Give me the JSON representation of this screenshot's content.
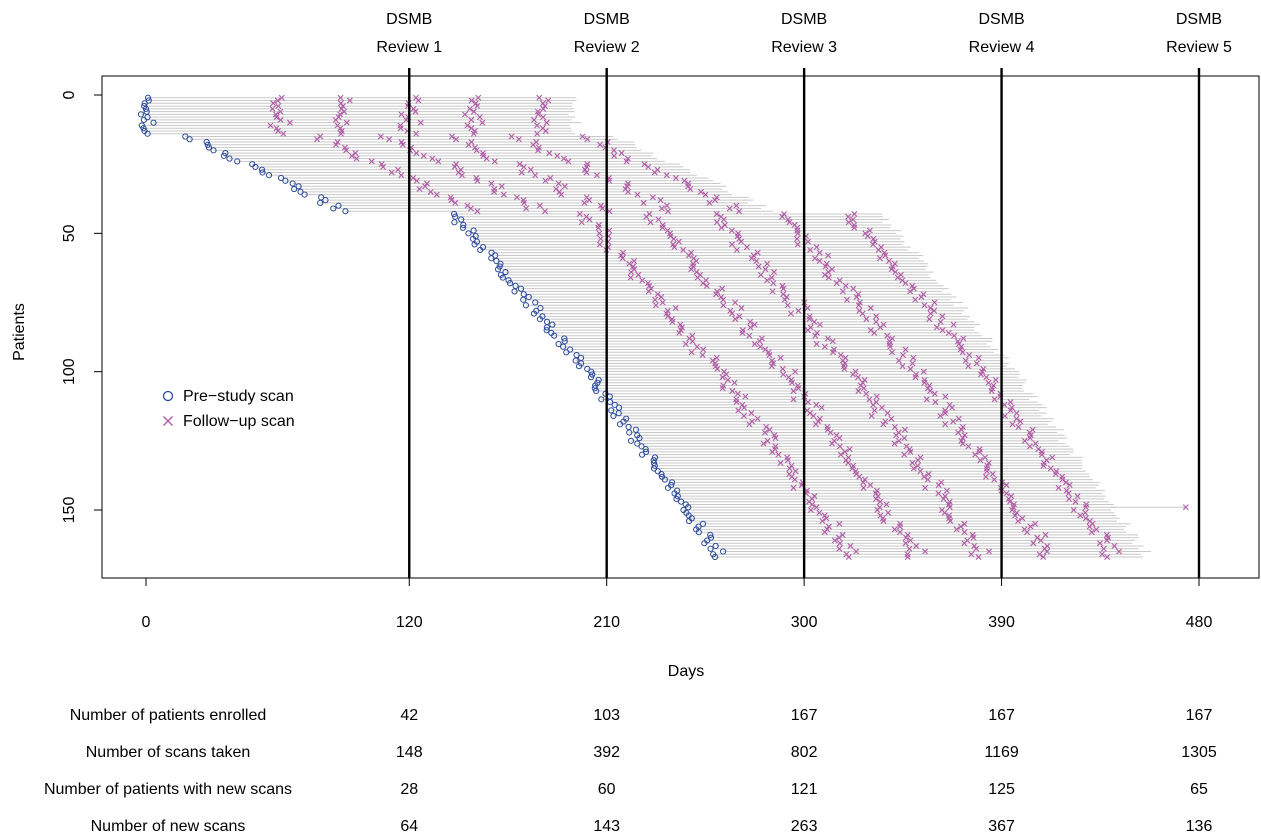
{
  "chart_data": {
    "type": "scatter",
    "xlabel": "Days",
    "ylabel": "Patients",
    "xlim": [
      -20,
      500
    ],
    "ylim": [
      0,
      176
    ],
    "y_reversed": true,
    "grid": false,
    "x_ticks": [
      "0",
      "120",
      "210",
      "300",
      "390",
      "480"
    ],
    "x_tick_values": [
      0,
      120,
      210,
      300,
      390,
      480
    ],
    "y_ticks": [
      "0",
      "50",
      "100",
      "150"
    ],
    "y_tick_values": [
      0,
      50,
      100,
      150
    ],
    "legend_position": "left",
    "legend": [
      {
        "label": "Pre−study scan",
        "marker": "circle",
        "color": "#2b4a9b"
      },
      {
        "label": "Follow−up scan",
        "marker": "cross",
        "color": "#b05aa6"
      }
    ],
    "reviews": [
      {
        "day": 120,
        "line1": "DSMB",
        "line2": "Review 1"
      },
      {
        "day": 210,
        "line1": "DSMB",
        "line2": "Review 2"
      },
      {
        "day": 300,
        "line1": "DSMB",
        "line2": "Review 3"
      },
      {
        "day": 390,
        "line1": "DSMB",
        "line2": "Review 4"
      },
      {
        "day": 480,
        "line1": "DSMB",
        "line2": "Review 5"
      }
    ],
    "enrollment_groups": [
      {
        "first_patient": 1,
        "last_patient": 14,
        "start_day": 0,
        "end_day": 1
      },
      {
        "first_patient": 15,
        "last_patient": 42,
        "start_day": 20,
        "end_day": 90
      },
      {
        "first_patient": 43,
        "last_patient": 103,
        "start_day": 140,
        "end_day": 205
      },
      {
        "first_patient": 104,
        "last_patient": 167,
        "start_day": 205,
        "end_day": 262
      }
    ],
    "follow_up_rule": {
      "first_offset_days": 60,
      "interval_days": 30,
      "total_span_days": 195,
      "random_jitter_days": 6
    },
    "patients_total": 167,
    "marker_colors": {
      "pre_study": "#2b4a9b",
      "follow_up": "#b05aa6",
      "connector": "#c8c8c8",
      "review_line": "#000000"
    },
    "summary_table": {
      "rows": [
        {
          "label": "Number of patients enrolled",
          "values": [
            "42",
            "103",
            "167",
            "167",
            "167"
          ]
        },
        {
          "label": "Number of scans taken",
          "values": [
            "148",
            "392",
            "802",
            "1169",
            "1305"
          ]
        },
        {
          "label": "Number of patients with new scans",
          "values": [
            "28",
            "60",
            "121",
            "125",
            "65"
          ]
        },
        {
          "label": "Number of new scans",
          "values": [
            "64",
            "143",
            "263",
            "367",
            "136"
          ]
        }
      ]
    }
  }
}
